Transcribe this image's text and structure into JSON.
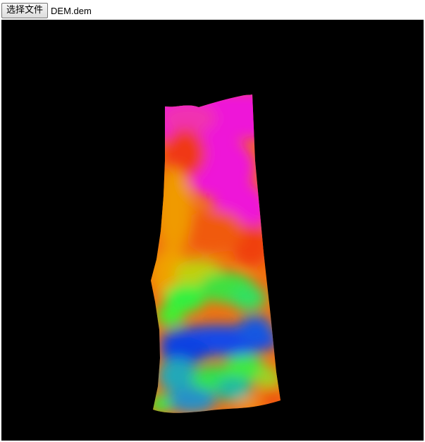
{
  "file_input": {
    "button_label": "选择文件",
    "file_name": "DEM.dem"
  },
  "viewer": {
    "background": "#000000",
    "colormap": [
      "#1040e0",
      "#20c8a0",
      "#20f040",
      "#f0a000",
      "#f03010",
      "#f010e0"
    ]
  }
}
